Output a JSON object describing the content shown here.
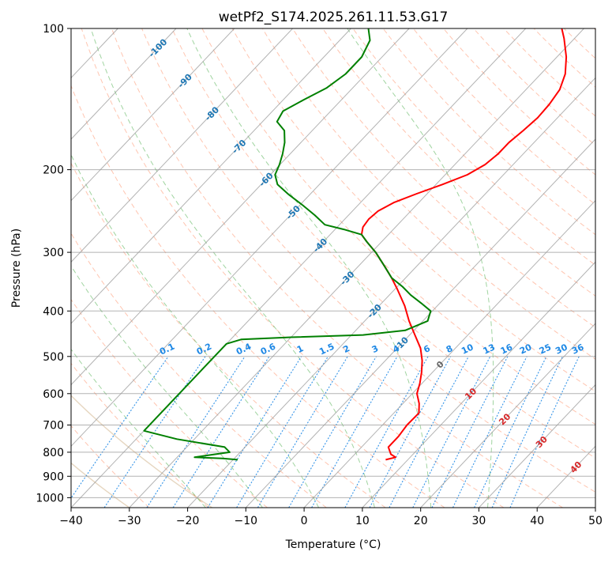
{
  "chart_data": {
    "type": "skew-t log-p",
    "title": "wetPf2_S174.2025.261.11.53.G17",
    "xlabel": "Temperature (°C)",
    "ylabel": "Pressure (hPa)",
    "xlim": [
      -40,
      50
    ],
    "ylim_hpa": [
      1050,
      100
    ],
    "x_ticks": [
      -40,
      -30,
      -20,
      -10,
      0,
      10,
      20,
      30,
      40,
      50
    ],
    "y_ticks": [
      100,
      200,
      300,
      400,
      500,
      600,
      700,
      800,
      900,
      1000
    ],
    "grid": true,
    "colors": {
      "temperature": "#ff0000",
      "dewpoint": "#008000",
      "dry_adiabats": "#ff7f50",
      "moist_adiabats": "#2ca02c",
      "mixing_ratio": "#1e88e5",
      "isotherm_labels": "#1f77b4",
      "theta_e_curves": "#d2b48c"
    },
    "series": [
      {
        "id": "temperature",
        "points": [
          {
            "p": 830,
            "t": 6.2
          },
          {
            "p": 820,
            "t": 7.5
          },
          {
            "p": 808,
            "t": 6.2
          },
          {
            "p": 780,
            "t": 4.6
          },
          {
            "p": 740,
            "t": 4.6
          },
          {
            "p": 700,
            "t": 4.2
          },
          {
            "p": 660,
            "t": 4.3
          },
          {
            "p": 630,
            "t": 2.8
          },
          {
            "p": 600,
            "t": 0.8
          },
          {
            "p": 570,
            "t": -0.4
          },
          {
            "p": 540,
            "t": -1.9
          },
          {
            "p": 510,
            "t": -3.7
          },
          {
            "p": 480,
            "t": -6.0
          },
          {
            "p": 450,
            "t": -9.1
          },
          {
            "p": 420,
            "t": -12.4
          },
          {
            "p": 390,
            "t": -15.6
          },
          {
            "p": 360,
            "t": -19.5
          },
          {
            "p": 340,
            "t": -22.4
          },
          {
            "p": 320,
            "t": -25.7
          },
          {
            "p": 300,
            "t": -29.3
          },
          {
            "p": 285,
            "t": -32.5
          },
          {
            "p": 275,
            "t": -34.6
          },
          {
            "p": 265,
            "t": -35.6
          },
          {
            "p": 255,
            "t": -35.9
          },
          {
            "p": 245,
            "t": -35.6
          },
          {
            "p": 235,
            "t": -34.3
          },
          {
            "p": 225,
            "t": -31.8
          },
          {
            "p": 215,
            "t": -28.9
          },
          {
            "p": 205,
            "t": -26.2
          },
          {
            "p": 195,
            "t": -24.8
          },
          {
            "p": 185,
            "t": -24.3
          },
          {
            "p": 175,
            "t": -24.3
          },
          {
            "p": 165,
            "t": -23.8
          },
          {
            "p": 155,
            "t": -23.4
          },
          {
            "p": 145,
            "t": -23.6
          },
          {
            "p": 135,
            "t": -24.2
          },
          {
            "p": 125,
            "t": -25.8
          },
          {
            "p": 115,
            "t": -28.4
          },
          {
            "p": 105,
            "t": -31.8
          },
          {
            "p": 100,
            "t": -33.8
          }
        ]
      },
      {
        "id": "dewpoint",
        "points": [
          {
            "p": 830,
            "t": -19.2
          },
          {
            "p": 825,
            "t": -22.0
          },
          {
            "p": 820,
            "t": -27.0
          },
          {
            "p": 810,
            "t": -24.5
          },
          {
            "p": 800,
            "t": -21.8
          },
          {
            "p": 780,
            "t": -23.5
          },
          {
            "p": 750,
            "t": -33.0
          },
          {
            "p": 720,
            "t": -40.0
          },
          {
            "p": 470,
            "t": -40.0
          },
          {
            "p": 460,
            "t": -38.2
          },
          {
            "p": 455,
            "t": -30.0
          },
          {
            "p": 450,
            "t": -18.0
          },
          {
            "p": 440,
            "t": -11.5
          },
          {
            "p": 420,
            "t": -9.2
          },
          {
            "p": 400,
            "t": -10.3
          },
          {
            "p": 385,
            "t": -13.2
          },
          {
            "p": 370,
            "t": -16.3
          },
          {
            "p": 355,
            "t": -19.1
          },
          {
            "p": 340,
            "t": -22.4
          },
          {
            "p": 320,
            "t": -25.7
          },
          {
            "p": 300,
            "t": -29.3
          },
          {
            "p": 285,
            "t": -32.5
          },
          {
            "p": 275,
            "t": -34.6
          },
          {
            "p": 268,
            "t": -38.5
          },
          {
            "p": 262,
            "t": -42.5
          },
          {
            "p": 250,
            "t": -45.8
          },
          {
            "p": 238,
            "t": -49.5
          },
          {
            "p": 226,
            "t": -53.6
          },
          {
            "p": 215,
            "t": -57.2
          },
          {
            "p": 205,
            "t": -59.2
          },
          {
            "p": 195,
            "t": -60.1
          },
          {
            "p": 185,
            "t": -61.3
          },
          {
            "p": 175,
            "t": -62.8
          },
          {
            "p": 165,
            "t": -64.8
          },
          {
            "p": 158,
            "t": -67.5
          },
          {
            "p": 150,
            "t": -68.2
          },
          {
            "p": 142,
            "t": -66.5
          },
          {
            "p": 134,
            "t": -64.5
          },
          {
            "p": 125,
            "t": -63.5
          },
          {
            "p": 115,
            "t": -63.5
          },
          {
            "p": 106,
            "t": -64.8
          },
          {
            "p": 100,
            "t": -67.0
          }
        ]
      }
    ],
    "mixing_ratio_labels_gkg": [
      "0.1",
      "0.2",
      "0.4",
      "0.6",
      "1",
      "1.5",
      "2",
      "3",
      "4",
      "6",
      "8",
      "10",
      "13",
      "16",
      "20",
      "25",
      "30",
      "36"
    ],
    "isotherm_labels": [
      "-100",
      "-90",
      "-80",
      "-70",
      "-60",
      "-50",
      "-40",
      "-30",
      "-20",
      "-10",
      "0",
      "10",
      "20",
      "30",
      "40"
    ]
  }
}
